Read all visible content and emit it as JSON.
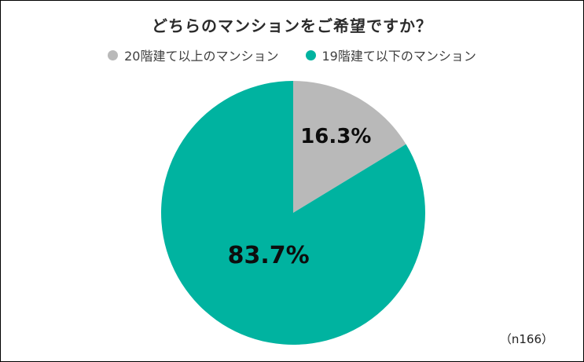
{
  "page": {
    "background": "#ffffff",
    "border_color": "#000000"
  },
  "chart_data": {
    "type": "pie",
    "title": "どちらのマンションをご希望ですか？",
    "note": "（n166）",
    "legend_position": "top",
    "start_angle_deg": 0,
    "direction": "clockwise",
    "label_color": "#0d0d0d",
    "slices": [
      {
        "label": "20階建て以上のマンション",
        "value": 16.3,
        "display": "16.3%",
        "color": "#b9b9b9"
      },
      {
        "label": "19階建て以下のマンション",
        "value": 83.7,
        "display": "83.7%",
        "color": "#00b3a0"
      }
    ]
  }
}
